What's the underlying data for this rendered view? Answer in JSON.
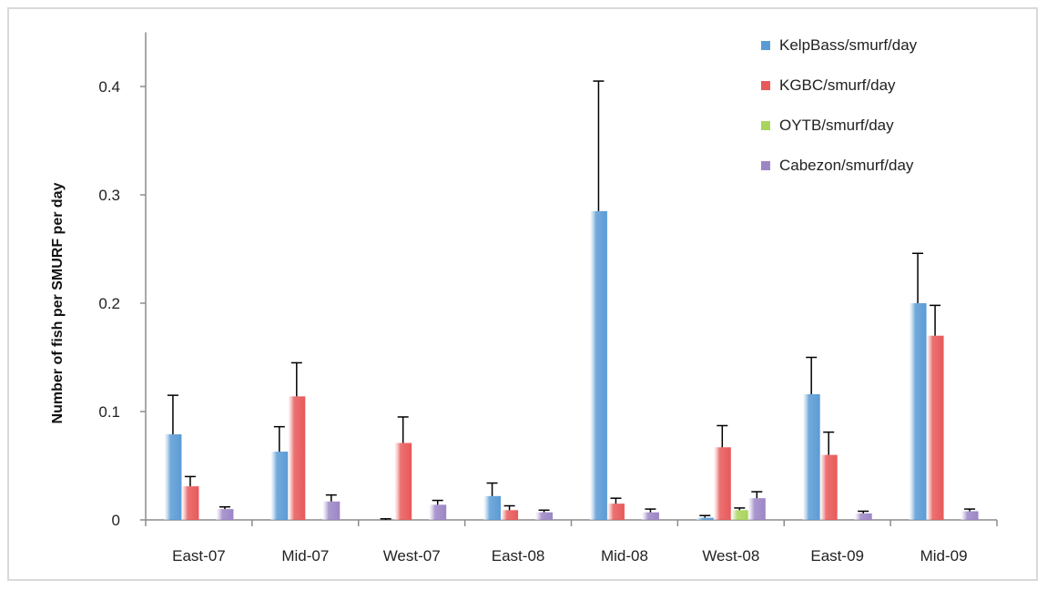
{
  "chart_data": {
    "type": "bar",
    "title": "",
    "xlabel": "",
    "ylabel": "Number of fish per SMURF per day",
    "ylim": [
      0,
      0.45
    ],
    "yticks": [
      "0",
      "0.1",
      "0.2",
      "0.3",
      "0.4"
    ],
    "ytick_values": [
      0,
      0.1,
      0.2,
      0.3,
      0.4
    ],
    "grid": false,
    "legend_position": "top-right",
    "error_bars": true,
    "categories": [
      "East-07",
      "Mid-07",
      "West-07",
      "East-08",
      "Mid-08",
      "West-08",
      "East-09",
      "Mid-09"
    ],
    "series": [
      {
        "name": "KelpBass/smurf/day",
        "color": "#5b9bd5",
        "values": [
          0.079,
          0.063,
          0.0,
          0.022,
          0.285,
          0.002,
          0.116,
          0.2
        ],
        "errors": [
          0.036,
          0.023,
          0.001,
          0.012,
          0.12,
          0.002,
          0.034,
          0.046
        ]
      },
      {
        "name": "KGBC/smurf/day",
        "color": "#e8595a",
        "values": [
          0.031,
          0.114,
          0.071,
          0.009,
          0.015,
          0.067,
          0.06,
          0.17
        ],
        "errors": [
          0.009,
          0.031,
          0.024,
          0.004,
          0.005,
          0.02,
          0.021,
          0.028
        ]
      },
      {
        "name": "OYTB/smurf/day",
        "color": "#a9d55c",
        "values": [
          0.0,
          0.0,
          0.0,
          0.0,
          0.0,
          0.009,
          0.0,
          0.0
        ],
        "errors": [
          0.0,
          0.0,
          0.0,
          0.0,
          0.0,
          0.002,
          0.0,
          0.0
        ]
      },
      {
        "name": "Cabezon/smurf/day",
        "color": "#9c86c6",
        "values": [
          0.01,
          0.017,
          0.014,
          0.007,
          0.007,
          0.02,
          0.006,
          0.008
        ],
        "errors": [
          0.002,
          0.006,
          0.004,
          0.002,
          0.003,
          0.006,
          0.002,
          0.002
        ]
      }
    ]
  }
}
